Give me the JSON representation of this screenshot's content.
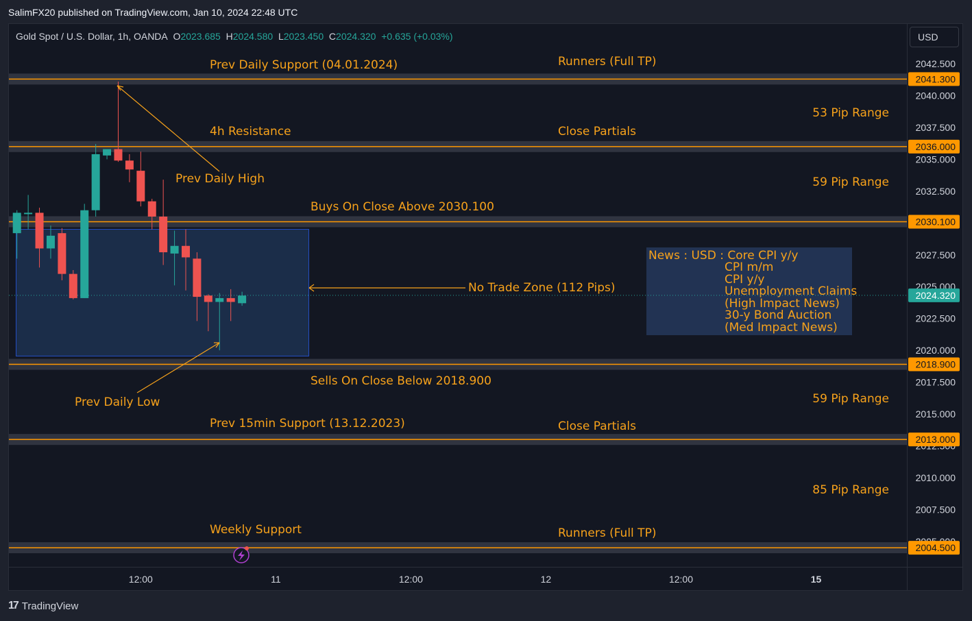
{
  "header": {
    "published": "SalimFX20 published on TradingView.com, Jan 10, 2024 22:48 UTC"
  },
  "footer": {
    "brand": "TradingView",
    "logo": "17"
  },
  "legend": {
    "symbol": "Gold Spot / U.S. Dollar, 1h, OANDA",
    "open_label": "O",
    "open": "2023.685",
    "high_label": "H",
    "high": "2024.580",
    "low_label": "L",
    "low": "2023.450",
    "close_label": "C",
    "close": "2024.320",
    "change": "+0.635 (+0.03%)"
  },
  "currency_button": "USD",
  "chart_data": {
    "type": "candlestick",
    "ylim": [
      2002.5,
      2044.5
    ],
    "y_ticks": [
      "2042.500",
      "2040.000",
      "2037.500",
      "2035.000",
      "2032.500",
      "2027.500",
      "2025.000",
      "2022.500",
      "2020.000",
      "2017.500",
      "2015.000",
      "2012.500",
      "2010.000",
      "2007.500",
      "2005.000"
    ],
    "x_ticks": [
      {
        "bar": 11,
        "label": "12:00"
      },
      {
        "bar": 23,
        "label": "11"
      },
      {
        "bar": 35,
        "label": "12:00"
      },
      {
        "bar": 47,
        "label": "12"
      },
      {
        "bar": 59,
        "label": "12:00"
      },
      {
        "bar": 71,
        "label": "15"
      }
    ],
    "candles": [
      {
        "o": 2029.2,
        "h": 2031.0,
        "l": 2027.2,
        "c": 2030.8
      },
      {
        "o": 2030.7,
        "h": 2032.2,
        "l": 2029.5,
        "c": 2030.8
      },
      {
        "o": 2030.8,
        "h": 2031.2,
        "l": 2026.5,
        "c": 2028.0
      },
      {
        "o": 2028.0,
        "h": 2029.8,
        "l": 2027.2,
        "c": 2029.0
      },
      {
        "o": 2029.2,
        "h": 2029.6,
        "l": 2025.5,
        "c": 2026.0
      },
      {
        "o": 2026.0,
        "h": 2026.3,
        "l": 2024.0,
        "c": 2024.1
      },
      {
        "o": 2024.1,
        "h": 2031.5,
        "l": 2024.1,
        "c": 2031.0
      },
      {
        "o": 2031.0,
        "h": 2036.2,
        "l": 2030.5,
        "c": 2035.4
      },
      {
        "o": 2035.3,
        "h": 2035.7,
        "l": 2035.0,
        "c": 2035.8
      },
      {
        "o": 2035.8,
        "h": 2041.1,
        "l": 2034.8,
        "c": 2034.9
      },
      {
        "o": 2034.9,
        "h": 2035.4,
        "l": 2033.2,
        "c": 2034.2
      },
      {
        "o": 2034.1,
        "h": 2035.6,
        "l": 2031.3,
        "c": 2031.7
      },
      {
        "o": 2031.7,
        "h": 2031.9,
        "l": 2029.5,
        "c": 2030.5
      },
      {
        "o": 2030.5,
        "h": 2033.4,
        "l": 2026.7,
        "c": 2027.7
      },
      {
        "o": 2027.6,
        "h": 2029.4,
        "l": 2025.1,
        "c": 2028.2
      },
      {
        "o": 2028.2,
        "h": 2029.5,
        "l": 2024.7,
        "c": 2027.3
      },
      {
        "o": 2027.2,
        "h": 2027.7,
        "l": 2022.3,
        "c": 2024.2
      },
      {
        "o": 2024.3,
        "h": 2024.4,
        "l": 2021.5,
        "c": 2023.8
      },
      {
        "o": 2023.8,
        "h": 2024.5,
        "l": 2020.0,
        "c": 2024.1
      },
      {
        "o": 2024.1,
        "h": 2024.8,
        "l": 2022.3,
        "c": 2023.8
      },
      {
        "o": 2023.7,
        "h": 2024.6,
        "l": 2023.5,
        "c": 2024.3
      }
    ],
    "last_price": "2024.320",
    "levels": [
      {
        "price": "2041.300",
        "value": 2041.3
      },
      {
        "price": "2036.000",
        "value": 2036.0
      },
      {
        "price": "2030.100",
        "value": 2030.1
      },
      {
        "price": "2018.900",
        "value": 2018.9
      },
      {
        "price": "2013.000",
        "value": 2013.0
      },
      {
        "price": "2004.500",
        "value": 2004.5
      }
    ],
    "labels": {
      "prev_daily_support": "Prev Daily Support (04.01.2024)",
      "runners_top": "Runners (Full TP)",
      "range_53": "53 Pip Range",
      "resistance_4h": "4h Resistance",
      "close_partials_top": "Close Partials",
      "prev_daily_high": "Prev Daily High",
      "range_59_top": "59 Pip Range",
      "buys": "Buys On Close Above 2030.100",
      "no_trade": "No Trade Zone (112 Pips)",
      "sells": "Sells On Close Below 2018.900",
      "prev_daily_low": "Prev Daily Low",
      "range_59_bottom": "59 Pip Range",
      "prev_15min_support": "Prev 15min Support (13.12.2023)",
      "close_partials_bottom": "Close Partials",
      "range_85": "85 Pip Range",
      "weekly_support": "Weekly Support",
      "runners_bottom": "Runners (Full TP)"
    },
    "news": [
      "News : USD : Core CPI y/y",
      "CPI m/m",
      "CPI y/y",
      "Unemployment Claims",
      "(High Impact News)",
      "30-y Bond Auction",
      "(Med Impact News)"
    ],
    "colors": {
      "up": "#26a69a",
      "down": "#ef5350",
      "annotation": "#f7a21b",
      "level_band": "#363a45",
      "price_tag": "#ff9800",
      "last_price_tag": "#26a69a",
      "zone_fill": "#1f3557",
      "zone_border": "#2962ff",
      "news_bg": "#223353"
    }
  }
}
